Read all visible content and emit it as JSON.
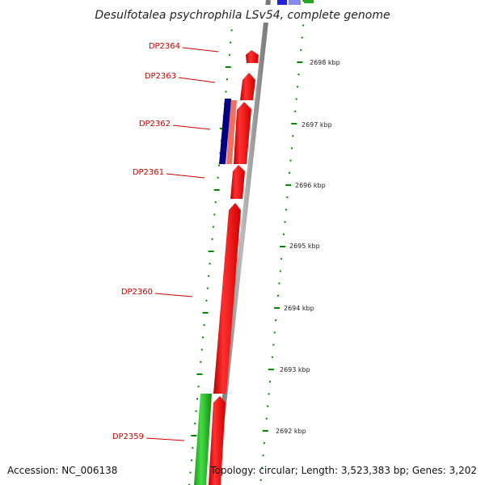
{
  "title": "Desulfotalea psychrophila LSv54, complete genome",
  "footer": {
    "accession": "Accession: NC_006138",
    "topology": "Topology: circular; Length: 3,523,383 bp; Genes: 3,202"
  },
  "genes": [
    {
      "label": "DP2364"
    },
    {
      "label": "DP2363"
    },
    {
      "label": "DP2362"
    },
    {
      "label": "DP2361"
    },
    {
      "label": "DP2360"
    },
    {
      "label": "DP2359"
    }
  ],
  "ticks": [
    {
      "label": "2698 kbp"
    },
    {
      "label": "2697 kbp"
    },
    {
      "label": "2696 kbp"
    },
    {
      "label": "2695 kbp"
    },
    {
      "label": "2694 kbp"
    },
    {
      "label": "2693 kbp"
    },
    {
      "label": "2692 kbp"
    }
  ],
  "colors": {
    "forward_cds": "#ff0000",
    "forward_cds_light": "#f07060",
    "reverse_dark": "#000080",
    "rna": "#22bb22",
    "backbone": "#888888",
    "dots": "#008800",
    "top_blue": "#2222dd",
    "top_blue_light": "#8888ee"
  }
}
